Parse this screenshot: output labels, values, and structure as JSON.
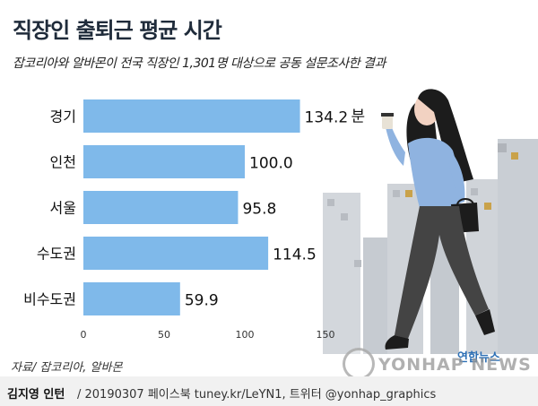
{
  "header": {
    "title": "직장인 출퇴근 평균 시간",
    "subtitle": "잡코리아와 알바몬이 전국 직장인 1,301명 대상으로 공동 설문조사한 결과"
  },
  "footer": {
    "source": "자료/ 잡코리아, 알바몬",
    "author": "김지영 인턴",
    "date_social": "/ 20190307  페이스북 tuney.kr/LeYN1, 트위터 @yonhap_graphics"
  },
  "logo": {
    "english": "YONHAP NEWS",
    "korean": "연합뉴스"
  },
  "chart_data": {
    "type": "bar",
    "orientation": "horizontal",
    "title": "직장인 출퇴근 평균 시간",
    "subtitle": "잡코리아와 알바몬이 전국 직장인 1,301명 대상으로 공동 설문조사한 결과",
    "categories": [
      "경기",
      "인천",
      "서울",
      "수도권",
      "비수도권"
    ],
    "values": [
      134.2,
      100.0,
      95.8,
      114.5,
      59.9
    ],
    "value_labels": [
      "134.2",
      "100.0",
      "95.8",
      "114.5",
      "59.9"
    ],
    "unit": "분",
    "xlim": [
      0,
      150
    ],
    "xticks": [
      "0",
      "50",
      "100",
      "150"
    ],
    "xlabel": "",
    "ylabel": "",
    "grid": false,
    "bar_color": "#7fb9ea"
  },
  "colors": {
    "bar": "#7fb9ea",
    "illustration_blouse": "#8fb3e0",
    "illustration_pants": "#444444",
    "illustration_buildings": "#c8ccd2"
  }
}
